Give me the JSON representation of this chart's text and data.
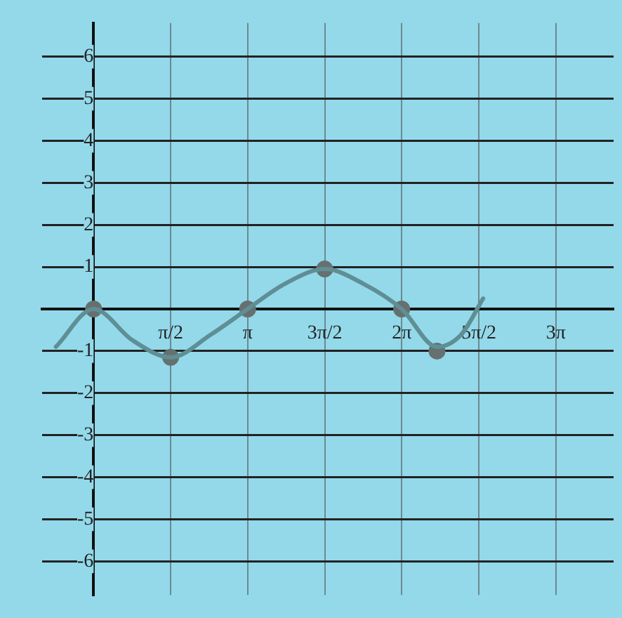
{
  "chart_data": {
    "type": "line",
    "xlim": [
      -1.05,
      10.6
    ],
    "ylim": [
      -6.8,
      6.8
    ],
    "xticks": [
      {
        "value": 1.5708,
        "label": "π/2"
      },
      {
        "value": 3.1416,
        "label": "π"
      },
      {
        "value": 4.7124,
        "label": "3π/2"
      },
      {
        "value": 6.2832,
        "label": "2π"
      },
      {
        "value": 7.854,
        "label": "5π/2"
      },
      {
        "value": 9.4248,
        "label": "3π"
      }
    ],
    "yticks": [
      -6,
      -5,
      -4,
      -3,
      -2,
      -1,
      1,
      2,
      3,
      4,
      5,
      6
    ],
    "grid": true,
    "legend": false,
    "series": [
      {
        "marker": "none",
        "color": "#5f8e94",
        "x": [
          -0.77,
          0,
          0.8,
          1.57,
          2.4,
          3.14,
          3.9,
          4.71,
          5.5,
          6.28,
          7.0,
          7.5,
          7.94
        ],
        "values": [
          -0.9,
          0,
          -0.75,
          -1.15,
          -0.6,
          0,
          0.6,
          0.95,
          0.6,
          0,
          -0.9,
          -0.6,
          0.25
        ]
      },
      {
        "type": "scatter",
        "marker": "circle",
        "color": "#66706f",
        "x": [
          0,
          1.57,
          3.14,
          4.71,
          6.28,
          7.0
        ],
        "values": [
          0,
          -1.15,
          0,
          0.95,
          0,
          -1.0
        ]
      }
    ]
  }
}
